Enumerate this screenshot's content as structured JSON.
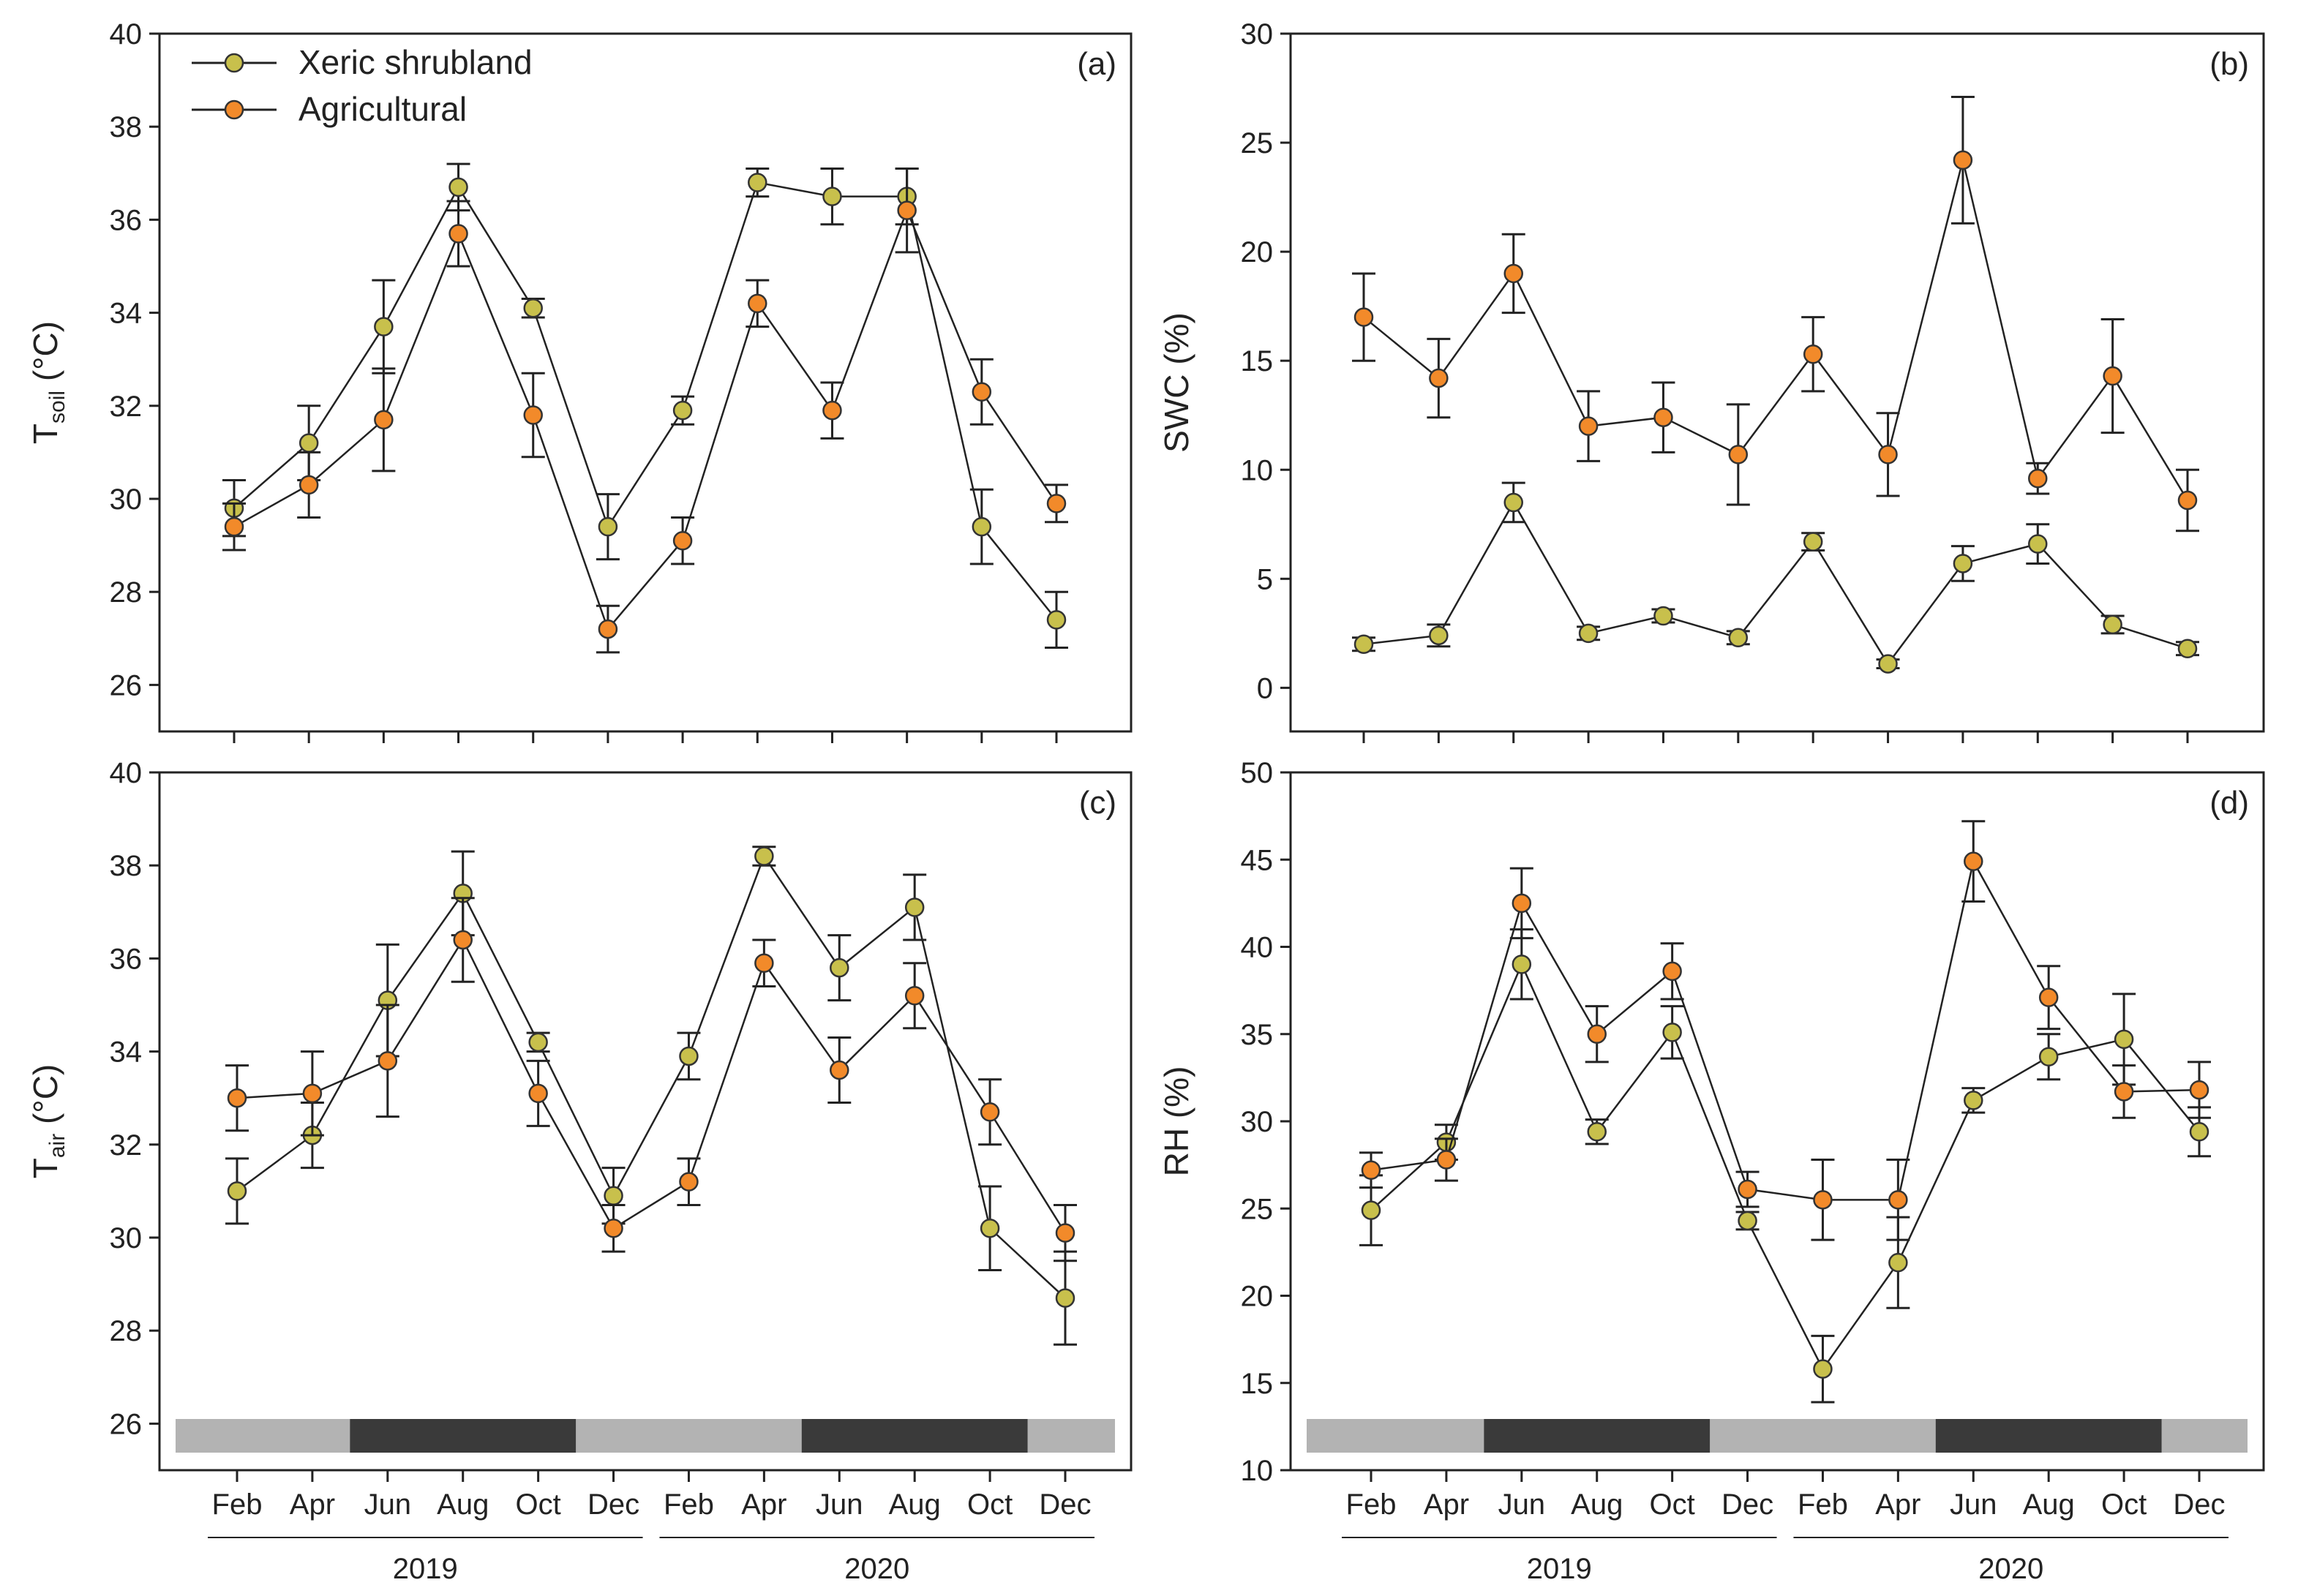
{
  "colors": {
    "xeric": "#c8c04c",
    "agricultural": "#f28a2a",
    "season_light": "#b3b3b3",
    "season_dark": "#3a3a3a"
  },
  "legend": {
    "xeric": "Xeric shrubland",
    "agricultural": "Agricultural"
  },
  "months": [
    "Feb",
    "Apr",
    "Jun",
    "Aug",
    "Oct",
    "Dec",
    "Feb",
    "Apr",
    "Jun",
    "Aug",
    "Oct",
    "Dec"
  ],
  "years": [
    "2019",
    "2020"
  ],
  "chart_data": [
    {
      "type": "line",
      "panel": "(a)",
      "ylabel_main": "T",
      "ylabel_sub": "soil",
      "ylabel_unit": " (°C)",
      "ylim": [
        25,
        40
      ],
      "yticks": [
        26,
        28,
        30,
        32,
        34,
        36,
        38,
        40
      ],
      "series": [
        {
          "name": "Xeric shrubland",
          "values": [
            29.8,
            31.2,
            33.7,
            36.7,
            34.1,
            29.4,
            31.9,
            36.8,
            36.5,
            36.5,
            29.4,
            27.4
          ],
          "errors": [
            0.6,
            0.8,
            1.0,
            0.5,
            0.2,
            0.7,
            0.3,
            0.3,
            0.6,
            0.6,
            0.8,
            0.6
          ]
        },
        {
          "name": "Agricultural",
          "values": [
            29.4,
            30.3,
            31.7,
            35.7,
            31.8,
            27.2,
            29.1,
            34.2,
            31.9,
            36.2,
            32.3,
            29.9
          ],
          "errors": [
            0.5,
            0.7,
            1.1,
            0.7,
            0.9,
            0.5,
            0.5,
            0.5,
            0.6,
            0.9,
            0.7,
            0.4
          ]
        }
      ]
    },
    {
      "type": "line",
      "panel": "(b)",
      "ylabel_main": "SWC (%)",
      "ylabel_sub": "",
      "ylabel_unit": "",
      "ylim": [
        -2,
        30
      ],
      "yticks": [
        0,
        5,
        10,
        15,
        20,
        25,
        30
      ],
      "series": [
        {
          "name": "Xeric shrubland",
          "values": [
            2.0,
            2.4,
            8.5,
            2.5,
            3.3,
            2.3,
            6.7,
            1.1,
            5.7,
            6.6,
            2.9,
            1.8
          ],
          "errors": [
            0.3,
            0.5,
            0.9,
            0.3,
            0.3,
            0.3,
            0.4,
            0.2,
            0.8,
            0.9,
            0.4,
            0.3
          ]
        },
        {
          "name": "Agricultural",
          "values": [
            17.0,
            14.2,
            19.0,
            12.0,
            12.4,
            10.7,
            15.3,
            10.7,
            24.2,
            9.6,
            14.3,
            8.6
          ],
          "errors": [
            2.0,
            1.8,
            1.8,
            1.6,
            1.6,
            2.3,
            1.7,
            1.9,
            2.9,
            0.7,
            2.6,
            1.4
          ]
        }
      ]
    },
    {
      "type": "line",
      "panel": "(c)",
      "ylabel_main": "T",
      "ylabel_sub": "air",
      "ylabel_unit": " (°C)",
      "ylim": [
        25,
        40
      ],
      "yticks": [
        26,
        28,
        30,
        32,
        34,
        36,
        38,
        40
      ],
      "season_dark_ranges": [
        [
          1.5,
          4.5
        ],
        [
          7.5,
          10.5
        ]
      ],
      "series": [
        {
          "name": "Xeric shrubland",
          "values": [
            31.0,
            32.2,
            35.1,
            37.4,
            34.2,
            30.9,
            33.9,
            38.2,
            35.8,
            37.1,
            30.2,
            28.7
          ],
          "errors": [
            0.7,
            0.7,
            1.2,
            0.9,
            0.2,
            0.6,
            0.5,
            0.2,
            0.7,
            0.7,
            0.9,
            1.0
          ]
        },
        {
          "name": "Agricultural",
          "values": [
            33.0,
            33.1,
            33.8,
            36.4,
            33.1,
            30.2,
            31.2,
            35.9,
            33.6,
            35.2,
            32.7,
            30.1
          ],
          "errors": [
            0.7,
            0.9,
            1.2,
            0.9,
            0.7,
            0.5,
            0.5,
            0.5,
            0.7,
            0.7,
            0.7,
            0.6
          ]
        }
      ]
    },
    {
      "type": "line",
      "panel": "(d)",
      "ylabel_main": "RH (%)",
      "ylabel_sub": "",
      "ylabel_unit": "",
      "ylim": [
        10,
        50
      ],
      "yticks": [
        10,
        15,
        20,
        25,
        30,
        35,
        40,
        45,
        50
      ],
      "season_dark_ranges": [
        [
          1.5,
          4.5
        ],
        [
          7.5,
          10.5
        ]
      ],
      "series": [
        {
          "name": "Xeric shrubland",
          "values": [
            24.9,
            28.8,
            39.0,
            29.4,
            35.1,
            24.3,
            15.8,
            21.9,
            31.2,
            33.7,
            34.7,
            29.4
          ],
          "errors": [
            2.0,
            1.0,
            2.0,
            0.7,
            1.5,
            0.5,
            1.9,
            2.6,
            0.7,
            1.3,
            2.6,
            1.4
          ]
        },
        {
          "name": "Agricultural",
          "values": [
            27.2,
            27.8,
            42.5,
            35.0,
            38.6,
            26.1,
            25.5,
            25.5,
            44.9,
            37.1,
            31.7,
            31.8
          ],
          "errors": [
            1.0,
            1.2,
            2.0,
            1.6,
            1.6,
            1.0,
            2.3,
            2.3,
            2.3,
            1.8,
            1.5,
            1.6
          ]
        }
      ]
    }
  ]
}
